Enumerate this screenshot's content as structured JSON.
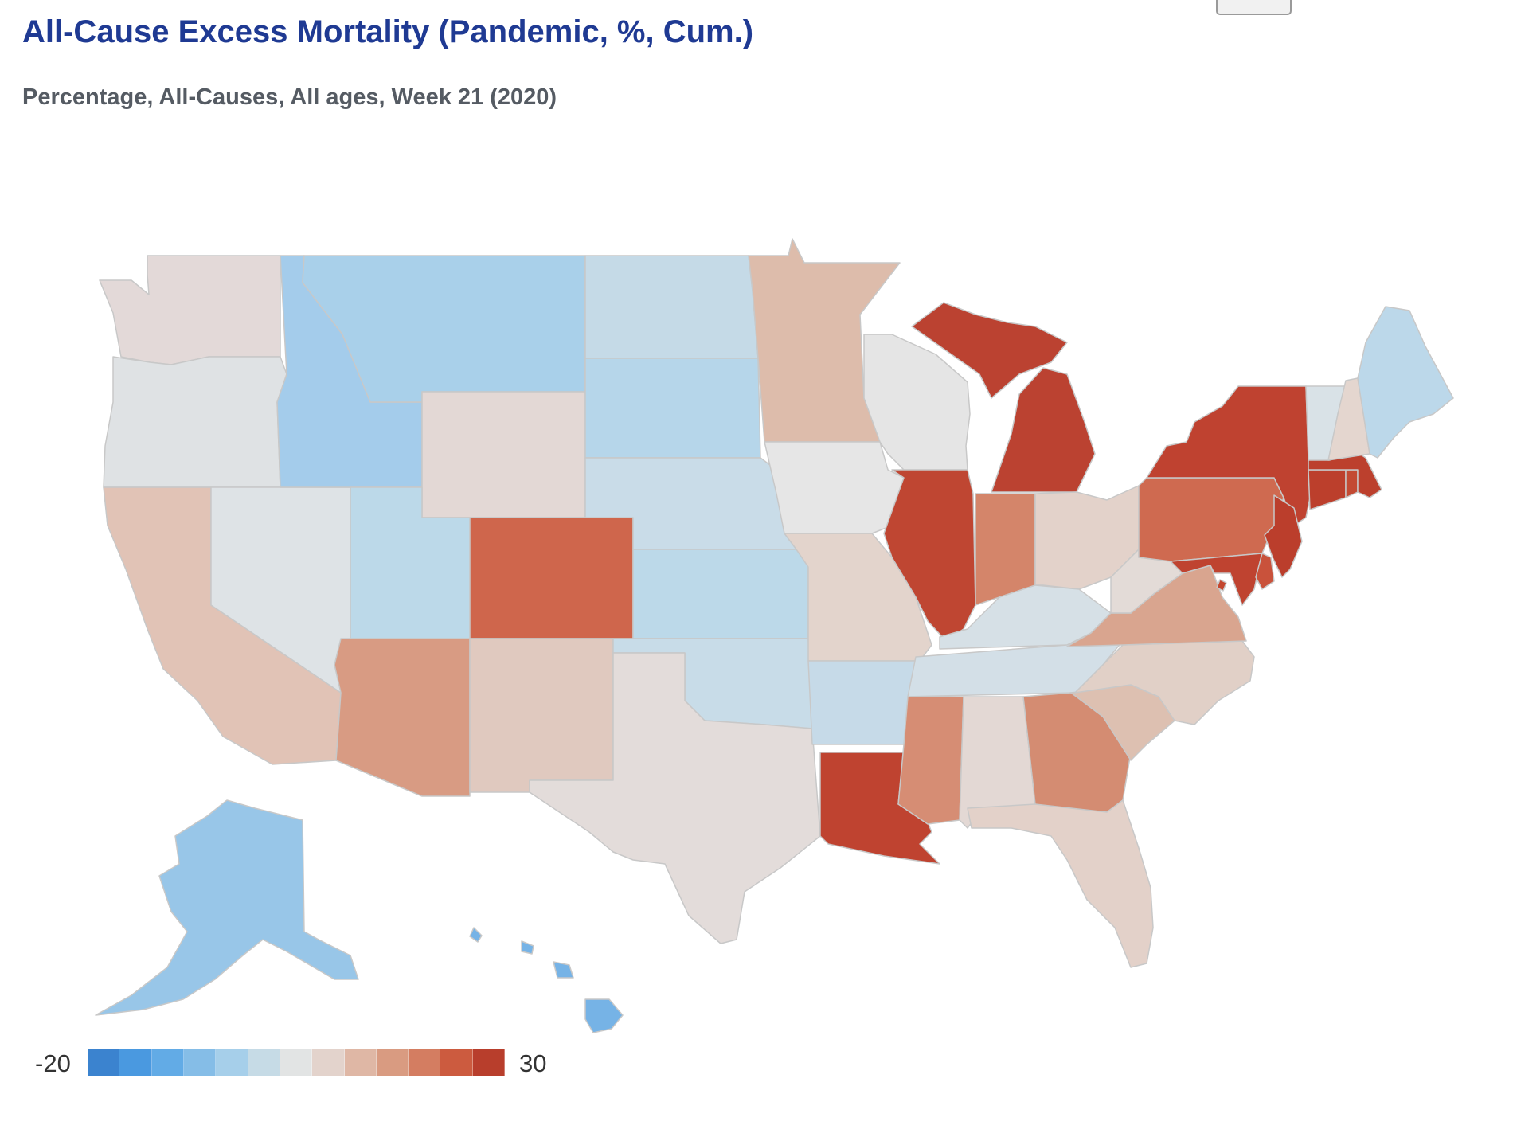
{
  "title": "All-Cause Excess Mortality (Pandemic, %, Cum.)",
  "subtitle": "Percentage, All-Causes, All ages, Week 21 (2020)",
  "legend": {
    "min_label": "-20",
    "max_label": "30",
    "colors": [
      "#3b83cf",
      "#4a99e0",
      "#62abe6",
      "#85bde7",
      "#a6cfea",
      "#c6dbe6",
      "#e2e4e4",
      "#e3d3cc",
      "#dfb7a5",
      "#d99b81",
      "#d47d61",
      "#cc5b3f",
      "#b83e2c"
    ]
  },
  "states": [
    {
      "id": "WA",
      "color": "#e3d9d8"
    },
    {
      "id": "OR",
      "color": "#dfe2e4"
    },
    {
      "id": "CA",
      "color": "#e1c3b6"
    },
    {
      "id": "NV",
      "color": "#dee3e6"
    },
    {
      "id": "ID",
      "color": "#a4cceb"
    },
    {
      "id": "MT",
      "color": "#a9d0ea"
    },
    {
      "id": "WY",
      "color": "#e3d8d5"
    },
    {
      "id": "UT",
      "color": "#bcd9e9"
    },
    {
      "id": "AZ",
      "color": "#d89b83"
    },
    {
      "id": "CO",
      "color": "#cf664c"
    },
    {
      "id": "NM",
      "color": "#e0c9bf"
    },
    {
      "id": "ND",
      "color": "#c5dae7"
    },
    {
      "id": "SD",
      "color": "#b6d6ea"
    },
    {
      "id": "NE",
      "color": "#c9dce8"
    },
    {
      "id": "KS",
      "color": "#bcd9e9"
    },
    {
      "id": "OK",
      "color": "#c8dce8"
    },
    {
      "id": "TX",
      "color": "#e3dcda"
    },
    {
      "id": "MN",
      "color": "#ddbcab"
    },
    {
      "id": "IA",
      "color": "#e6e6e6"
    },
    {
      "id": "MO",
      "color": "#e3d4cc"
    },
    {
      "id": "AR",
      "color": "#c6dae8"
    },
    {
      "id": "LA",
      "color": "#bf4330"
    },
    {
      "id": "WI",
      "color": "#e5e5e5"
    },
    {
      "id": "IL",
      "color": "#bf4632"
    },
    {
      "id": "MI",
      "color": "#bb4231"
    },
    {
      "id": "IN",
      "color": "#d4856a"
    },
    {
      "id": "OH",
      "color": "#e3d2ca"
    },
    {
      "id": "KY",
      "color": "#d6e0e6"
    },
    {
      "id": "TN",
      "color": "#d3dfe7"
    },
    {
      "id": "MS",
      "color": "#d68d74"
    },
    {
      "id": "AL",
      "color": "#e3d8d4"
    },
    {
      "id": "GA",
      "color": "#d48c72"
    },
    {
      "id": "FL",
      "color": "#e3d1c9"
    },
    {
      "id": "SC",
      "color": "#ddc0b1"
    },
    {
      "id": "NC",
      "color": "#e1d0c7"
    },
    {
      "id": "VA",
      "color": "#d9a58f"
    },
    {
      "id": "WV",
      "color": "#e3dbd7"
    },
    {
      "id": "PA",
      "color": "#cf6a50"
    },
    {
      "id": "NY",
      "color": "#bf4230"
    },
    {
      "id": "NJ",
      "color": "#bb3e2c"
    },
    {
      "id": "MD",
      "color": "#bf4330"
    },
    {
      "id": "DE",
      "color": "#c9523b"
    },
    {
      "id": "DC",
      "color": "#c4472f"
    },
    {
      "id": "CT",
      "color": "#bc3f2c"
    },
    {
      "id": "RI",
      "color": "#c34a33"
    },
    {
      "id": "MA",
      "color": "#bc402d"
    },
    {
      "id": "VT",
      "color": "#d9e2e7"
    },
    {
      "id": "NH",
      "color": "#e4d6cf"
    },
    {
      "id": "ME",
      "color": "#bcd8ea"
    },
    {
      "id": "AK",
      "color": "#98c6e8"
    },
    {
      "id": "HI",
      "color": "#76b3e6"
    }
  ]
}
